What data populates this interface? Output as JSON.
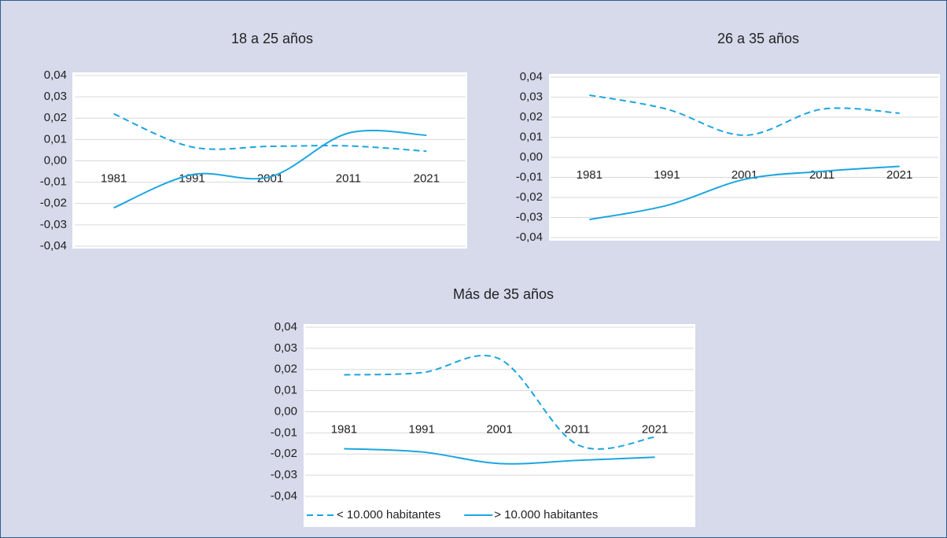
{
  "chart_data": [
    {
      "type": "line",
      "title": "18 a 25 años",
      "categories": [
        "1981",
        "1991",
        "2001",
        "2011",
        "2021"
      ],
      "series": [
        {
          "color": "#1ba6df",
          "dashed": true,
          "values": [
            0.022,
            0.0065,
            0.0068,
            0.007,
            0.0045
          ]
        },
        {
          "color": "#1ba6df",
          "dashed": false,
          "values": [
            -0.022,
            -0.0065,
            -0.0075,
            0.013,
            0.012
          ]
        }
      ],
      "ylim": [
        -0.04,
        0.04
      ],
      "yticks": [
        {
          "value": -0.04,
          "label": "-0,04"
        },
        {
          "value": -0.03,
          "label": "-0,03"
        },
        {
          "value": -0.02,
          "label": "-0,02"
        },
        {
          "value": -0.01,
          "label": "-0,01"
        },
        {
          "value": 0,
          "label": "0,00"
        },
        {
          "value": 0.01,
          "label": "0,01"
        },
        {
          "value": 0.02,
          "label": "0,02"
        },
        {
          "value": 0.03,
          "label": "0,03"
        },
        {
          "value": 0.04,
          "label": "0,04"
        }
      ],
      "grid": true
    },
    {
      "type": "line",
      "title": "26 a 35 años",
      "categories": [
        "1981",
        "1991",
        "2001",
        "2011",
        "2021"
      ],
      "series": [
        {
          "color": "#1ba6df",
          "dashed": true,
          "values": [
            0.031,
            0.024,
            0.011,
            0.024,
            0.022
          ]
        },
        {
          "color": "#1ba6df",
          "dashed": false,
          "values": [
            -0.031,
            -0.024,
            -0.011,
            -0.007,
            -0.0045
          ]
        }
      ],
      "ylim": [
        -0.04,
        0.04
      ],
      "yticks": [
        {
          "value": -0.04,
          "label": "-0,04"
        },
        {
          "value": -0.03,
          "label": "-0,03"
        },
        {
          "value": -0.02,
          "label": "-0,02"
        },
        {
          "value": -0.01,
          "label": "-0,01"
        },
        {
          "value": 0,
          "label": "0,00"
        },
        {
          "value": 0.01,
          "label": "0,01"
        },
        {
          "value": 0.02,
          "label": "0,02"
        },
        {
          "value": 0.03,
          "label": "0,03"
        },
        {
          "value": 0.04,
          "label": "0,04"
        }
      ],
      "grid": true
    },
    {
      "type": "line",
      "title": "Más de 35 años",
      "categories": [
        "1981",
        "1991",
        "2001",
        "2011",
        "2021"
      ],
      "series": [
        {
          "name": "< 10.000 habitantes",
          "color": "#1ba6df",
          "dashed": true,
          "values": [
            0.0175,
            0.0185,
            0.025,
            -0.0155,
            -0.012
          ]
        },
        {
          "name": "> 10.000 habitantes",
          "color": "#1ba6df",
          "dashed": false,
          "values": [
            -0.0175,
            -0.019,
            -0.0245,
            -0.023,
            -0.0215
          ]
        }
      ],
      "ylim": [
        -0.04,
        0.04
      ],
      "yticks": [
        {
          "value": -0.04,
          "label": "-0,04"
        },
        {
          "value": -0.03,
          "label": "-0,03"
        },
        {
          "value": -0.02,
          "label": "-0,02"
        },
        {
          "value": -0.01,
          "label": "-0,01"
        },
        {
          "value": 0,
          "label": "0,00"
        },
        {
          "value": 0.01,
          "label": "0,01"
        },
        {
          "value": 0.02,
          "label": "0,02"
        },
        {
          "value": 0.03,
          "label": "0,03"
        },
        {
          "value": 0.04,
          "label": "0,04"
        }
      ],
      "grid": true,
      "legend": "bottom"
    }
  ]
}
